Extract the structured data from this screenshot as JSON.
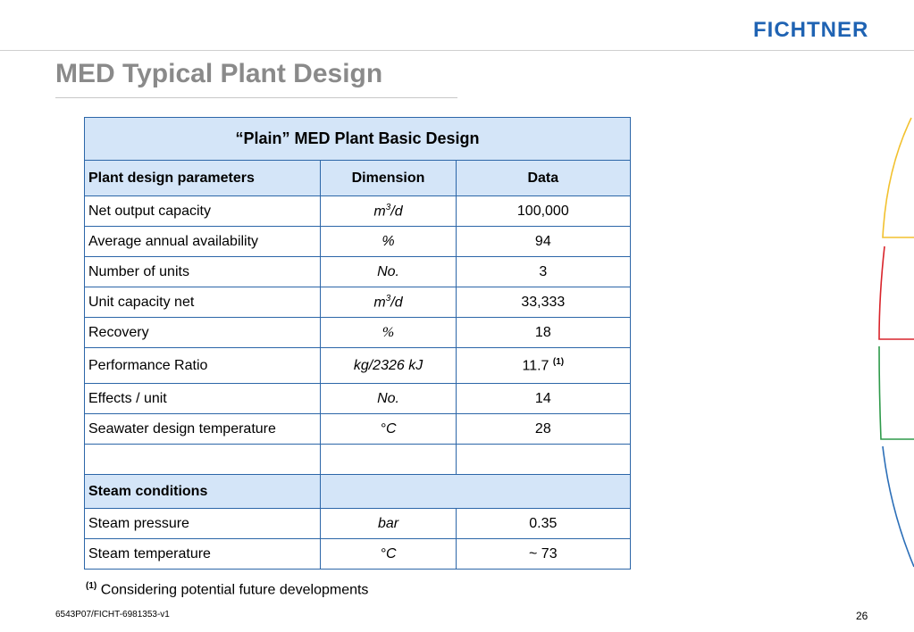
{
  "header": {
    "logo": "FICHTNER"
  },
  "slide": {
    "title": "MED Typical Plant Design"
  },
  "table": {
    "title": "“Plain” MED Plant Basic Design",
    "headers": [
      "Plant design parameters",
      "Dimension",
      "Data"
    ],
    "rows": [
      {
        "param": "Net output capacity",
        "dim_base": "m",
        "dim_sup": "3",
        "dim_tail": "/d",
        "data": "100,000"
      },
      {
        "param": "Average annual availability",
        "dim": "%",
        "data": "94"
      },
      {
        "param": "Number of units",
        "dim": "No.",
        "data": "3"
      },
      {
        "param": "Unit capacity net",
        "dim_base": "m",
        "dim_sup": "3",
        "dim_tail": "/d",
        "data": "33,333"
      },
      {
        "param": "Recovery",
        "dim": "%",
        "data": "18"
      },
      {
        "param": "Performance Ratio",
        "dim": "kg/2326 kJ",
        "data": "11.7",
        "data_note": "(1)"
      },
      {
        "param": "Effects / unit",
        "dim": "No.",
        "data": "14"
      },
      {
        "param": "Seawater design temperature",
        "dim": "°C",
        "data": "28"
      }
    ],
    "section": "Steam conditions",
    "steam_rows": [
      {
        "param": "Steam pressure",
        "dim": "bar",
        "data": "0.35"
      },
      {
        "param": "Steam temperature",
        "dim": "°C",
        "data": "~ 73"
      }
    ]
  },
  "footnote": {
    "marker": "(1)",
    "text": "Considering potential future developments"
  },
  "footer": {
    "doc_ref": "6543P07/FICHT-6981353-v1",
    "page": "26"
  },
  "colors": {
    "accent_blue": "#1f63b3",
    "header_fill": "#d4e5f8",
    "border": "#2c66a8",
    "deco_yellow": "#f2c12e",
    "deco_red": "#d9242b",
    "deco_green": "#2e9a4a",
    "deco_blue": "#2c6fb8"
  }
}
